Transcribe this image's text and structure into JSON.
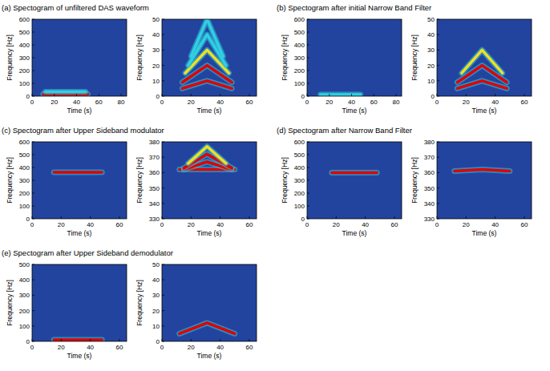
{
  "chart_data": [
    {
      "type": "spectrogram",
      "title": "(a) Spectogram of unfiltered DAS waveform",
      "xlabel": "Time (s)",
      "ylabel": "Frequency [Hz]",
      "xlim": [
        0,
        85
      ],
      "xticks": [
        0,
        20,
        40,
        60,
        80
      ],
      "ylim": [
        0,
        600
      ],
      "yticks": [
        0,
        100,
        200,
        300,
        400,
        500,
        600
      ],
      "series": [
        {
          "color": "#e00000",
          "x": [
            10,
            50
          ],
          "values": [
            15,
            15
          ]
        },
        {
          "color": "#30d0e0",
          "x": [
            12,
            48
          ],
          "values": [
            35,
            35
          ]
        }
      ]
    },
    {
      "type": "spectrogram",
      "xlabel": "Time (s)",
      "ylabel": "Frequency [Hz]",
      "xlim": [
        0,
        65
      ],
      "xticks": [
        0,
        20,
        40,
        60
      ],
      "ylim": [
        0,
        50
      ],
      "yticks": [
        0,
        10,
        20,
        30,
        40,
        50
      ],
      "series": [
        {
          "color": "#e00000",
          "x": [
            14,
            31,
            48
          ],
          "values": [
            5,
            10,
            5
          ]
        },
        {
          "color": "#e00000",
          "x": [
            14,
            31,
            48
          ],
          "values": [
            9,
            20,
            9
          ]
        },
        {
          "color": "#f0e020",
          "x": [
            16,
            31,
            46
          ],
          "values": [
            15,
            30,
            15
          ]
        },
        {
          "color": "#30d0e0",
          "x": [
            18,
            31,
            44
          ],
          "values": [
            20,
            40,
            20
          ]
        },
        {
          "color": "#30d0e0",
          "x": [
            20,
            31,
            42
          ],
          "values": [
            26,
            50,
            26
          ]
        }
      ]
    },
    {
      "type": "spectrogram",
      "title": "(b) Spectogram after initial Narrow Band Filter",
      "xlabel": "Time (s)",
      "ylabel": "Frequency [Hz]",
      "xlim": [
        0,
        85
      ],
      "xticks": [
        0,
        20,
        40,
        60,
        80
      ],
      "ylim": [
        0,
        600
      ],
      "yticks": [
        0,
        100,
        200,
        300,
        400,
        500,
        600
      ],
      "series": [
        {
          "color": "#30d0e0",
          "x": [
            12,
            48
          ],
          "values": [
            12,
            12
          ]
        }
      ]
    },
    {
      "type": "spectrogram",
      "xlabel": "Time (s)",
      "ylabel": "Frequency [Hz]",
      "xlim": [
        0,
        65
      ],
      "xticks": [
        0,
        20,
        40,
        60
      ],
      "ylim": [
        0,
        50
      ],
      "yticks": [
        0,
        10,
        20,
        30,
        40,
        50
      ],
      "series": [
        {
          "color": "#e00000",
          "x": [
            14,
            31,
            48
          ],
          "values": [
            5,
            10,
            5
          ]
        },
        {
          "color": "#e00000",
          "x": [
            14,
            31,
            48
          ],
          "values": [
            9,
            20,
            9
          ]
        },
        {
          "color": "#f0e020",
          "x": [
            17,
            31,
            45
          ],
          "values": [
            15,
            30,
            15
          ]
        }
      ]
    },
    {
      "type": "spectrogram",
      "title": "(c) Spectogram after Upper Sideband modulator",
      "xlabel": "Time (s)",
      "ylabel": "Frequency [Hz]",
      "xlim": [
        0,
        65
      ],
      "xticks": [
        0,
        20,
        40,
        60
      ],
      "ylim": [
        0,
        600
      ],
      "yticks": [
        0,
        100,
        200,
        300,
        400,
        500,
        600
      ],
      "series": [
        {
          "color": "#e00000",
          "x": [
            15,
            48
          ],
          "values": [
            362,
            362
          ]
        }
      ]
    },
    {
      "type": "spectrogram",
      "xlabel": "Time (s)",
      "ylabel": "Frequency [Hz]",
      "xlim": [
        0,
        65
      ],
      "xticks": [
        0,
        20,
        40,
        60
      ],
      "ylim": [
        330,
        380
      ],
      "yticks": [
        330,
        340,
        350,
        360,
        370,
        380
      ],
      "series": [
        {
          "color": "#e00000",
          "x": [
            12,
            50
          ],
          "values": [
            362,
            362
          ]
        },
        {
          "color": "#e00000",
          "x": [
            15,
            31,
            48
          ],
          "values": [
            362,
            367,
            362
          ]
        },
        {
          "color": "#e00000",
          "x": [
            15,
            31,
            48
          ],
          "values": [
            363,
            372,
            363
          ]
        },
        {
          "color": "#f0e020",
          "x": [
            18,
            31,
            44
          ],
          "values": [
            366,
            377,
            366
          ]
        }
      ]
    },
    {
      "type": "spectrogram",
      "title": "(d) Spectogram after Narrow Band Filter",
      "xlabel": "Time (s)",
      "ylabel": "Frequency [Hz]",
      "xlim": [
        0,
        65
      ],
      "xticks": [
        0,
        20,
        40,
        60
      ],
      "ylim": [
        0,
        600
      ],
      "yticks": [
        0,
        100,
        200,
        300,
        400,
        500,
        600
      ],
      "series": [
        {
          "color": "#e00000",
          "x": [
            17,
            48
          ],
          "values": [
            360,
            360
          ]
        }
      ]
    },
    {
      "type": "spectrogram",
      "xlabel": "Time (s)",
      "ylabel": "Frequency [Hz]",
      "xlim": [
        0,
        65
      ],
      "xticks": [
        0,
        20,
        40,
        60
      ],
      "ylim": [
        330,
        380
      ],
      "yticks": [
        330,
        340,
        350,
        360,
        370,
        380
      ],
      "series": [
        {
          "color": "#e00000",
          "x": [
            12,
            31,
            50
          ],
          "values": [
            361,
            362,
            361
          ]
        }
      ]
    },
    {
      "type": "spectrogram",
      "title": "(e) Spectogram after Upper Sideband demodulator",
      "xlabel": "Time (s)",
      "ylabel": "Frequency [Hz]",
      "xlim": [
        0,
        65
      ],
      "xticks": [
        0,
        20,
        40,
        60
      ],
      "ylim": [
        0,
        500
      ],
      "yticks": [
        0,
        100,
        200,
        300,
        400,
        500
      ],
      "series": [
        {
          "color": "#e00000",
          "x": [
            15,
            48
          ],
          "values": [
            10,
            10
          ]
        }
      ]
    },
    {
      "type": "spectrogram",
      "xlabel": "Time (s)",
      "ylabel": "Frequency [Hz]",
      "xlim": [
        0,
        65
      ],
      "xticks": [
        0,
        20,
        40,
        60
      ],
      "ylim": [
        0,
        50
      ],
      "yticks": [
        0,
        10,
        20,
        30,
        40,
        50
      ],
      "series": [
        {
          "color": "#e00000",
          "x": [
            12,
            31,
            50
          ],
          "values": [
            5,
            12,
            5
          ]
        }
      ]
    }
  ]
}
